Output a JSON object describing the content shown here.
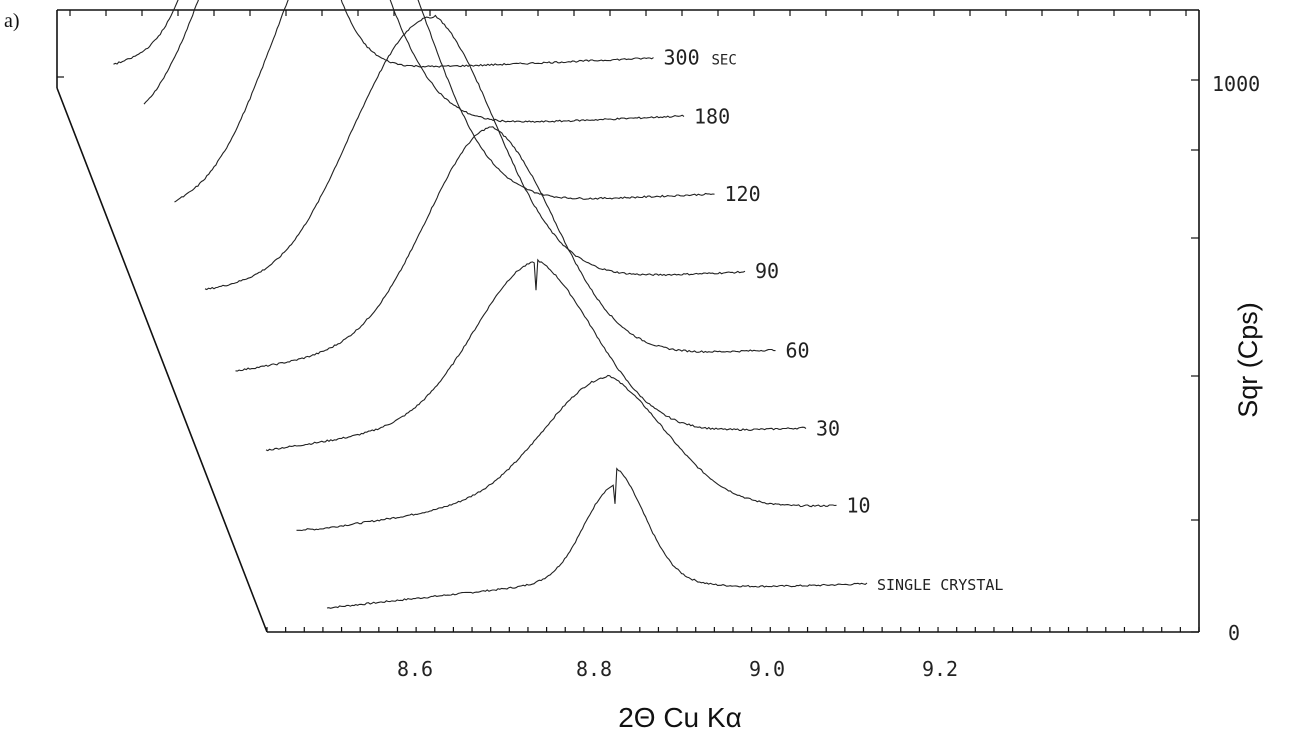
{
  "panel_label": "a)",
  "chart_data": {
    "type": "line",
    "title": "",
    "xlabel": "2Θ Cu Kα",
    "ylabel": "Sqr (Cps)",
    "x_ticks": [
      "8.6",
      "8.8",
      "9.0",
      "9.2"
    ],
    "x_tick_values": [
      8.6,
      8.8,
      9.0,
      9.2
    ],
    "xlim": [
      8.45,
      9.45
    ],
    "y_ticks": [
      "0",
      "1000"
    ],
    "y_tick_values": [
      0,
      1000
    ],
    "ylim": [
      0,
      1100
    ],
    "grid": false,
    "legend": "none",
    "line_color": "#222222",
    "series": [
      {
        "name": "SINGLE CRYSTAL",
        "peak_x": 8.82,
        "peak_y": 318,
        "width": 0.034,
        "base_left": 35,
        "base_right": 70,
        "shoulder": 0
      },
      {
        "name": "10",
        "peak_x": 8.845,
        "peak_y": 385,
        "width": 0.07,
        "base_left": 55,
        "base_right": 60,
        "shoulder": 0
      },
      {
        "name": "30",
        "peak_x": 8.8,
        "peak_y": 520,
        "width": 0.068,
        "base_left": 55,
        "base_right": 60,
        "shoulder": 0
      },
      {
        "name": "60",
        "peak_x": 8.785,
        "peak_y": 720,
        "width": 0.072,
        "base_left": 55,
        "base_right": 55,
        "shoulder": 0
      },
      {
        "name": "90",
        "peak_x": 8.755,
        "peak_y": 810,
        "width": 0.072,
        "base_left": 55,
        "base_right": 60,
        "shoulder": 0.15
      },
      {
        "name": "120",
        "peak_x": 8.71,
        "peak_y": 970,
        "width": 0.072,
        "base_left": 55,
        "base_right": 60,
        "shoulder": 0.18
      },
      {
        "name": "180",
        "peak_x": 8.68,
        "peak_y": 1040,
        "width": 0.07,
        "base_left": 55,
        "base_right": 60,
        "shoulder": 0.2
      },
      {
        "name": "300",
        "peak_x": 8.665,
        "peak_y": 1085,
        "width": 0.05,
        "base_left": 65,
        "base_right": 50,
        "shoulder": 0
      }
    ],
    "annotations": [
      "SEC"
    ]
  }
}
